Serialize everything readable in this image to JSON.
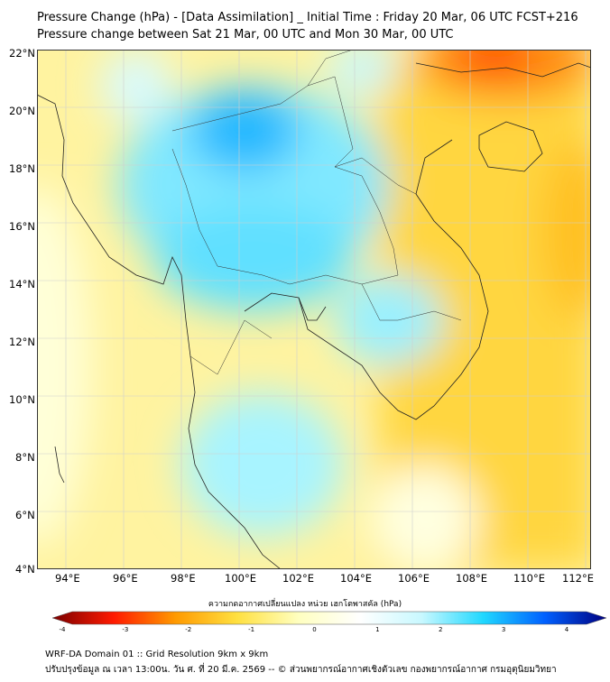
{
  "title": {
    "line1": "Pressure Change (hPa) - [Data Assimilation] _ Initial Time : Friday 20 Mar, 06 UTC FCST+216",
    "line2": "Pressure change between Sat 21 Mar, 00 UTC and Mon 30 Mar, 00 UTC"
  },
  "map": {
    "lat_ticks": [
      "22°N",
      "20°N",
      "18°N",
      "16°N",
      "14°N",
      "12°N",
      "10°N",
      "8°N",
      "6°N",
      "4°N"
    ],
    "lon_ticks": [
      "94°E",
      "96°E",
      "98°E",
      "100°E",
      "102°E",
      "104°E",
      "106°E",
      "108°E",
      "110°E",
      "112°E"
    ]
  },
  "colorbar": {
    "label": "ความกดอากาศเปลี่ยนแปลง หน่วย เฮกโตพาสคัล (hPa)",
    "ticks": [
      "-4",
      "-3",
      "-2",
      "-1",
      "0",
      "1",
      "2",
      "3",
      "4"
    ],
    "colors": [
      "#7a0000",
      "#ff1a00",
      "#ff9a00",
      "#ffe040",
      "#ffffc0",
      "#ffffff",
      "#c8f8ff",
      "#20d8ff",
      "#0060ff",
      "#000080"
    ]
  },
  "footer": {
    "line1": "WRF-DA Domain 01 :: Grid Resolution 9km x 9km",
    "line2": "ปรับปรุงข้อมูล ณ เวลา 13:00น. วัน ศ. ที่ 20 มี.ค. 2569 -- © ส่วนพยากรณ์อากาศเชิงตัวเลข กองพยากรณ์อากาศ กรมอุตุนิยมวิทยา"
  }
}
